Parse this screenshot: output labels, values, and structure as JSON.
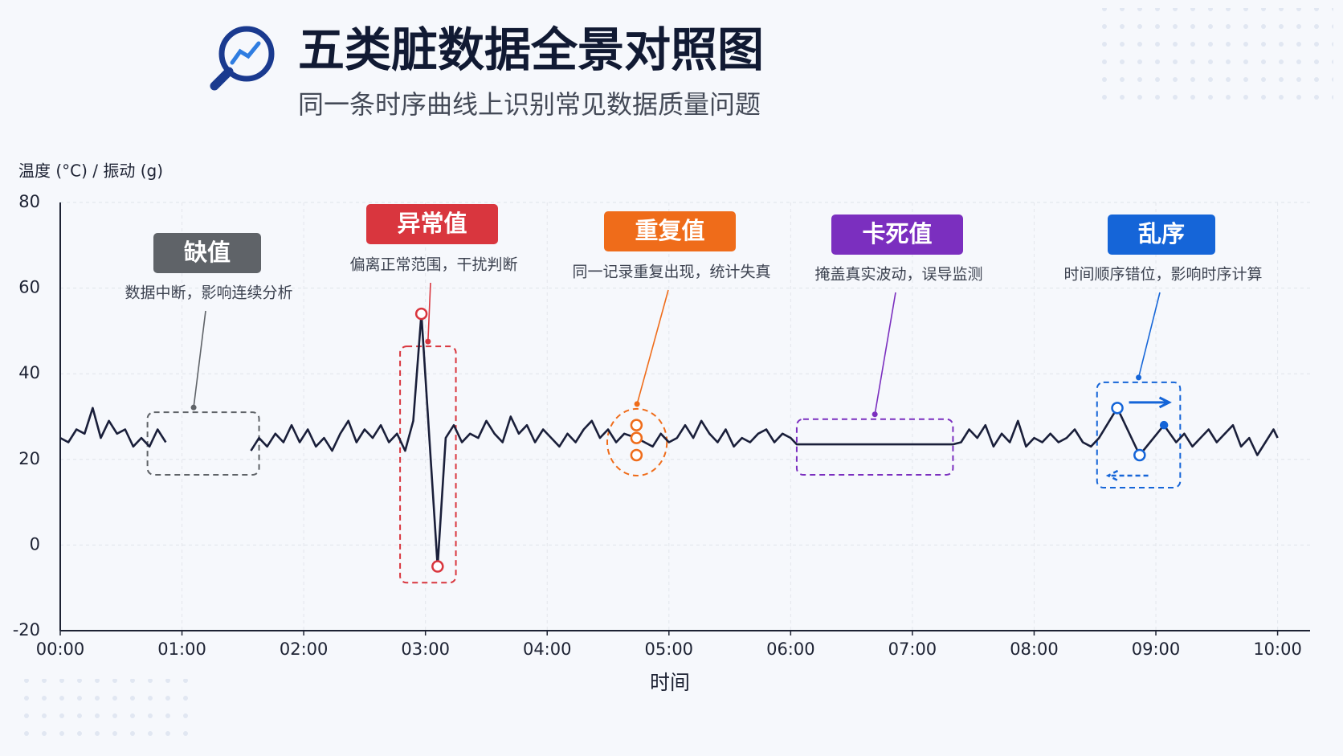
{
  "chart_data": {
    "type": "line",
    "title": "五类脏数据全景对照图",
    "subtitle": "同一条时序曲线上识别常见数据质量问题",
    "y_label": "温度 (°C) / 振动 (g)",
    "x_label": "时间",
    "line_color": "#1a1f3a",
    "grid": true,
    "xlim": [
      0,
      616
    ],
    "ylim": [
      -20,
      80
    ],
    "yticks": [
      -20,
      0,
      20,
      40,
      60,
      80
    ],
    "xticks": [
      {
        "value": 0,
        "label": "00:00"
      },
      {
        "value": 60,
        "label": "01:00"
      },
      {
        "value": 120,
        "label": "02:00"
      },
      {
        "value": 180,
        "label": "03:00"
      },
      {
        "value": 240,
        "label": "04:00"
      },
      {
        "value": 300,
        "label": "05:00"
      },
      {
        "value": 360,
        "label": "06:00"
      },
      {
        "value": 420,
        "label": "07:00"
      },
      {
        "value": 480,
        "label": "08:00"
      },
      {
        "value": 540,
        "label": "09:00"
      },
      {
        "value": 600,
        "label": "10:00"
      }
    ],
    "x": [
      0,
      4,
      8,
      12,
      16,
      20,
      24,
      28,
      32,
      36,
      40,
      44,
      48,
      52,
      56,
      94,
      98,
      102,
      106,
      110,
      114,
      118,
      122,
      126,
      130,
      134,
      138,
      142,
      146,
      150,
      154,
      158,
      162,
      166,
      170,
      174,
      178,
      186,
      190,
      194,
      198,
      202,
      206,
      210,
      214,
      218,
      222,
      226,
      230,
      234,
      238,
      242,
      246,
      250,
      254,
      258,
      262,
      266,
      270,
      274,
      278,
      284,
      288,
      292,
      296,
      300,
      304,
      308,
      312,
      316,
      320,
      324,
      328,
      332,
      336,
      340,
      344,
      348,
      352,
      356,
      360,
      363,
      370,
      380,
      390,
      400,
      410,
      420,
      430,
      440,
      444,
      448,
      452,
      456,
      460,
      464,
      468,
      472,
      476,
      480,
      484,
      488,
      492,
      496,
      500,
      504,
      508,
      512,
      521,
      532,
      544,
      550,
      554,
      558,
      562,
      566,
      570,
      574,
      578,
      582,
      586,
      590,
      594,
      598,
      600
    ],
    "values": [
      25,
      24,
      27,
      26,
      32,
      25,
      29,
      26,
      27,
      23,
      25,
      23,
      27,
      24,
      null,
      22,
      25,
      23,
      26,
      24,
      28,
      24,
      27,
      23,
      25,
      22,
      26,
      29,
      24,
      27,
      25,
      28,
      24,
      26,
      22,
      29,
      54,
      -5,
      25,
      28,
      24,
      26,
      25,
      29,
      26,
      24,
      30,
      26,
      28,
      24,
      27,
      25,
      23,
      26,
      24,
      27,
      29,
      25,
      27,
      24,
      26,
      25,
      24,
      23,
      26,
      24,
      25,
      28,
      25,
      29,
      26,
      24,
      27,
      23,
      25,
      24,
      26,
      27,
      24,
      26,
      25,
      23.5,
      23.5,
      23.5,
      23.5,
      23.5,
      23.5,
      23.5,
      23.5,
      23.5,
      24,
      27,
      25,
      28,
      23,
      26,
      24,
      29,
      23,
      25,
      24,
      26,
      24,
      25,
      27,
      24,
      23,
      25,
      32,
      21,
      28,
      24,
      26,
      23,
      25,
      27,
      24,
      26,
      28,
      23,
      25,
      21,
      24,
      27,
      25
    ],
    "annotations": [
      {
        "label": "缺值",
        "description": "数据中断，影响连续分析",
        "color": "#5f6368",
        "shape": "rect",
        "region": {
          "x": [
            43,
            98
          ],
          "y": [
            16.4,
            31
          ]
        }
      },
      {
        "label": "异常值",
        "description": "偏离正常范围，干扰判断",
        "color": "#d9363e",
        "shape": "rect",
        "region": {
          "x": [
            167.5,
            195
          ],
          "y": [
            -8.8,
            46.4
          ]
        },
        "markers": {
          "x": [
            178,
            186
          ],
          "y": [
            54,
            -5
          ]
        }
      },
      {
        "label": "重复值",
        "description": "同一记录重复出现，统计失真",
        "color": "#ef6c1a",
        "shape": "ellipse",
        "region": {
          "x": [
            269.6,
            299
          ],
          "y": [
            16.2,
            31.8
          ]
        },
        "markers": {
          "x": [
            284,
            284,
            284
          ],
          "y": [
            28,
            25,
            21
          ]
        }
      },
      {
        "label": "卡死值",
        "description": "掩盖真实波动，误导监测",
        "color": "#7b2fbf",
        "shape": "rect",
        "region": {
          "x": [
            363,
            440
          ],
          "y": [
            16.4,
            29.4
          ]
        }
      },
      {
        "label": "乱序",
        "description": "时间顺序错位，影响时序计算",
        "color": "#1565d8",
        "shape": "rect",
        "region": {
          "x": [
            511,
            552
          ],
          "y": [
            13.4,
            38
          ]
        },
        "markers": {
          "x": [
            521,
            532,
            544
          ],
          "y": [
            32,
            21,
            28
          ]
        }
      }
    ]
  }
}
